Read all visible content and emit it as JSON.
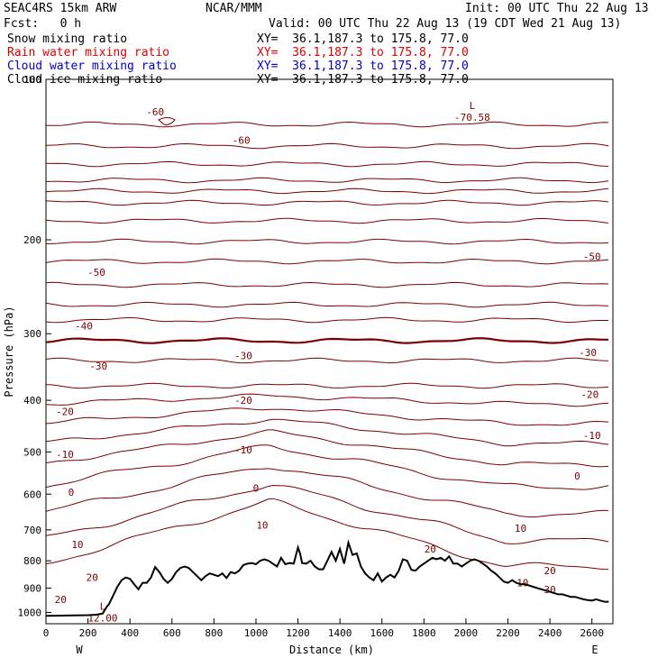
{
  "header": {
    "model": "SEAC4RS 15km ARW",
    "org": "NCAR/MMM",
    "init": "Init: 00 UTC Thu 22 Aug 13",
    "fcst": "Fcst:   0 h",
    "valid": "Valid: 00 UTC Thu 22 Aug 13 (19 CDT Wed 21 Aug 13)",
    "fields": [
      {
        "label": "Snow mixing ratio",
        "xy": "XY=  36.1,187.3 to 175.8, 77.0",
        "color": "#000000"
      },
      {
        "label": "Rain water mixing ratio",
        "xy": "XY=  36.1,187.3 to 175.8, 77.0",
        "color": "#e00000"
      },
      {
        "label": "Cloud water mixing ratio",
        "xy": "XY=  36.1,187.3 to 175.8, 77.0",
        "color": "#0000d0"
      },
      {
        "label": "Cloud ice mixing ratio",
        "xy": "XY=  36.1,187.3 to 175.8, 77.0",
        "color": "#000000"
      }
    ]
  },
  "chart_data": {
    "type": "line",
    "xlabel": "Distance (km)",
    "ylabel": "Pressure (hPa)",
    "xlim": [
      0,
      2700
    ],
    "ylim": [
      1050,
      100
    ],
    "y_scale": "log",
    "x_ticks": [
      0,
      200,
      400,
      600,
      800,
      1000,
      1200,
      1400,
      1600,
      1800,
      2000,
      2200,
      2400,
      2600
    ],
    "y_ticks": [
      200,
      300,
      400,
      500,
      600,
      700,
      800,
      900,
      1000
    ],
    "y_top_label": "100",
    "x_end_labels": {
      "left": "W",
      "right": "E"
    },
    "contour_color": "#7a0000",
    "zero_isotherm_color": "#7a0000",
    "terrain_color": "#000000",
    "extrema": [
      {
        "type": "L",
        "value": "-70.58",
        "x": 2030,
        "p": 115
      },
      {
        "type": "L",
        "value": "12.00",
        "x": 270,
        "p": 1000
      }
    ],
    "isotherm_labels": [
      {
        "text": "-60",
        "x": 520,
        "p": 115
      },
      {
        "text": "-60",
        "x": 930,
        "p": 130
      },
      {
        "text": "-50",
        "x": 240,
        "p": 230
      },
      {
        "text": "-50",
        "x": 2600,
        "p": 215
      },
      {
        "text": "-40",
        "x": 180,
        "p": 290
      },
      {
        "text": "-30",
        "x": 250,
        "p": 345
      },
      {
        "text": "-30",
        "x": 940,
        "p": 330
      },
      {
        "text": "-30",
        "x": 2580,
        "p": 325
      },
      {
        "text": "-20",
        "x": 90,
        "p": 420
      },
      {
        "text": "-20",
        "x": 940,
        "p": 400
      },
      {
        "text": "-20",
        "x": 2590,
        "p": 390
      },
      {
        "text": "-10",
        "x": 90,
        "p": 505
      },
      {
        "text": "-10",
        "x": 940,
        "p": 495
      },
      {
        "text": "-10",
        "x": 2600,
        "p": 465
      },
      {
        "text": "0",
        "x": 120,
        "p": 595
      },
      {
        "text": "0",
        "x": 1000,
        "p": 585
      },
      {
        "text": "0",
        "x": 2530,
        "p": 555
      },
      {
        "text": "10",
        "x": 1030,
        "p": 685
      },
      {
        "text": "10",
        "x": 150,
        "p": 745
      },
      {
        "text": "10",
        "x": 2260,
        "p": 695
      },
      {
        "text": "20",
        "x": 1830,
        "p": 760
      },
      {
        "text": "20",
        "x": 220,
        "p": 860
      },
      {
        "text": "20",
        "x": 2400,
        "p": 835
      },
      {
        "text": "20",
        "x": 70,
        "p": 945
      },
      {
        "text": "10",
        "x": 2270,
        "p": 880
      },
      {
        "text": "30",
        "x": 2400,
        "p": 905
      }
    ],
    "terrain": {
      "x": [
        0,
        200,
        240,
        270,
        280,
        290,
        300,
        320,
        340,
        360,
        380,
        400,
        420,
        440,
        460,
        480,
        500,
        520,
        540,
        560,
        580,
        600,
        620,
        640,
        660,
        680,
        700,
        720,
        740,
        760,
        780,
        800,
        820,
        840,
        860,
        880,
        900,
        920,
        940,
        960,
        980,
        1000,
        1020,
        1040,
        1060,
        1080,
        1100,
        1120,
        1140,
        1160,
        1180,
        1200,
        1210,
        1220,
        1240,
        1260,
        1280,
        1300,
        1320,
        1340,
        1360,
        1380,
        1400,
        1420,
        1440,
        1460,
        1480,
        1500,
        1520,
        1540,
        1560,
        1580,
        1600,
        1620,
        1640,
        1660,
        1680,
        1700,
        1720,
        1740,
        1760,
        1780,
        1800,
        1820,
        1840,
        1860,
        1880,
        1900,
        1920,
        1940,
        1960,
        1980,
        2000,
        2020,
        2040,
        2060,
        2080,
        2100,
        2120,
        2140,
        2160,
        2180,
        2200,
        2220,
        2240,
        2260,
        2280,
        2300,
        2320,
        2340,
        2360,
        2380,
        2400,
        2420,
        2440,
        2460,
        2480,
        2500,
        2520,
        2540,
        2560,
        2580,
        2600,
        2620,
        2640,
        2660,
        2680,
        2700
      ],
      "p": [
        1015,
        1012,
        1010,
        1005,
        990,
        975,
        965,
        930,
        895,
        870,
        860,
        865,
        885,
        905,
        880,
        880,
        860,
        822,
        840,
        865,
        880,
        865,
        840,
        825,
        820,
        825,
        840,
        855,
        870,
        855,
        845,
        850,
        855,
        845,
        862,
        840,
        845,
        835,
        815,
        810,
        808,
        812,
        800,
        795,
        800,
        810,
        820,
        790,
        812,
        808,
        810,
        755,
        775,
        808,
        810,
        800,
        820,
        830,
        830,
        800,
        770,
        800,
        760,
        810,
        740,
        780,
        775,
        820,
        845,
        860,
        870,
        845,
        875,
        860,
        850,
        860,
        835,
        795,
        800,
        832,
        835,
        820,
        810,
        800,
        790,
        795,
        790,
        800,
        785,
        810,
        810,
        820,
        810,
        800,
        795,
        800,
        810,
        820,
        835,
        845,
        860,
        875,
        880,
        870,
        880,
        885,
        885,
        890,
        895,
        900,
        905,
        910,
        915,
        920,
        925,
        925,
        930,
        935,
        935,
        940,
        945,
        948,
        950,
        945,
        950,
        955,
        955
      ]
    }
  }
}
